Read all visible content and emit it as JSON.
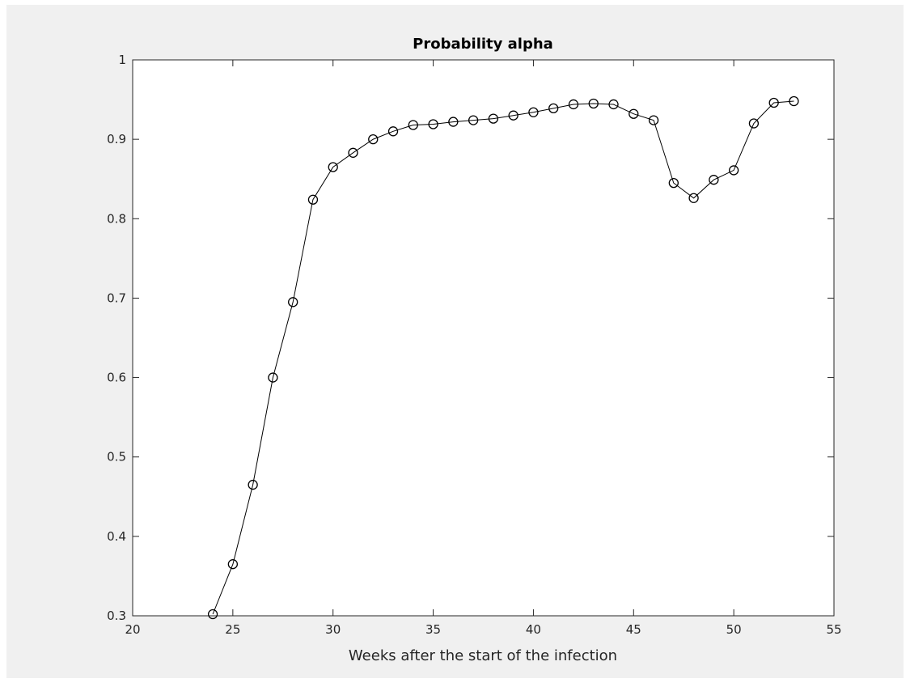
{
  "chart_data": {
    "type": "line",
    "title": "Probability alpha",
    "xlabel": "Weeks after the start of the infection",
    "ylabel": "",
    "xlim": [
      20,
      55
    ],
    "ylim": [
      0.3,
      1
    ],
    "xticks": [
      "20",
      "25",
      "30",
      "35",
      "40",
      "45",
      "50",
      "55"
    ],
    "yticks": [
      "0.3",
      "0.4",
      "0.5",
      "0.6",
      "0.7",
      "0.8",
      "0.9",
      "1"
    ],
    "grid": false,
    "marker": "circle",
    "line_color": "#000000",
    "series": [
      {
        "x": [
          24,
          25,
          26,
          27,
          28,
          29,
          30,
          31,
          32,
          33,
          34,
          35,
          36,
          37,
          38,
          39,
          40,
          41,
          42,
          43,
          44,
          45,
          46,
          47,
          48,
          49,
          50,
          51,
          52,
          53
        ],
        "y": [
          0.302,
          0.365,
          0.465,
          0.6,
          0.695,
          0.824,
          0.865,
          0.883,
          0.9,
          0.91,
          0.918,
          0.919,
          0.922,
          0.924,
          0.926,
          0.93,
          0.934,
          0.939,
          0.944,
          0.945,
          0.944,
          0.932,
          0.924,
          0.845,
          0.826,
          0.849,
          0.861,
          0.92,
          0.946,
          0.948
        ]
      }
    ]
  }
}
